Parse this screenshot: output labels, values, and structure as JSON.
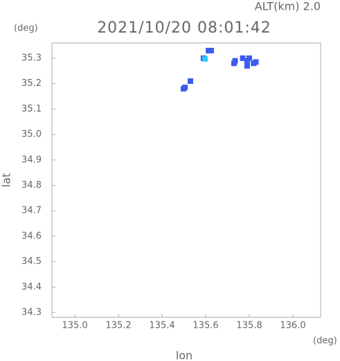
{
  "chart_data": {
    "type": "scatter",
    "title": "2021/10/20 08:01:42",
    "alt_label": "ALT(km) 2.0",
    "y_unit": "(deg)",
    "x_unit": "(deg)",
    "xlabel": "lon",
    "ylabel": "lat",
    "xlim": [
      134.895,
      136.127
    ],
    "ylim": [
      34.281,
      35.36
    ],
    "xticks": [
      {
        "value": 135.0,
        "label": "135.0"
      },
      135.2,
      135.4,
      135.6,
      135.8,
      {
        "value": 136.0,
        "label": "136.0"
      }
    ],
    "yticks": [
      35.3,
      35.2,
      35.1,
      {
        "value": 35.0,
        "label": "35.0"
      },
      34.9,
      34.8,
      34.7,
      34.6,
      34.5,
      34.4,
      34.3
    ],
    "series": [
      {
        "color": "#3a5cf0",
        "x": [
          135.613,
          135.625,
          135.59,
          135.53,
          135.498,
          135.505,
          135.73,
          135.735,
          135.77,
          135.79,
          135.82,
          135.79,
          135.8,
          135.83
        ],
        "y": [
          35.33,
          35.33,
          35.3,
          35.21,
          35.18,
          35.185,
          35.28,
          35.29,
          35.3,
          35.29,
          35.28,
          35.27,
          35.3,
          35.285
        ]
      },
      {
        "color": "#33c8ff",
        "x": [
          135.597
        ],
        "y": [
          35.297
        ]
      }
    ]
  }
}
